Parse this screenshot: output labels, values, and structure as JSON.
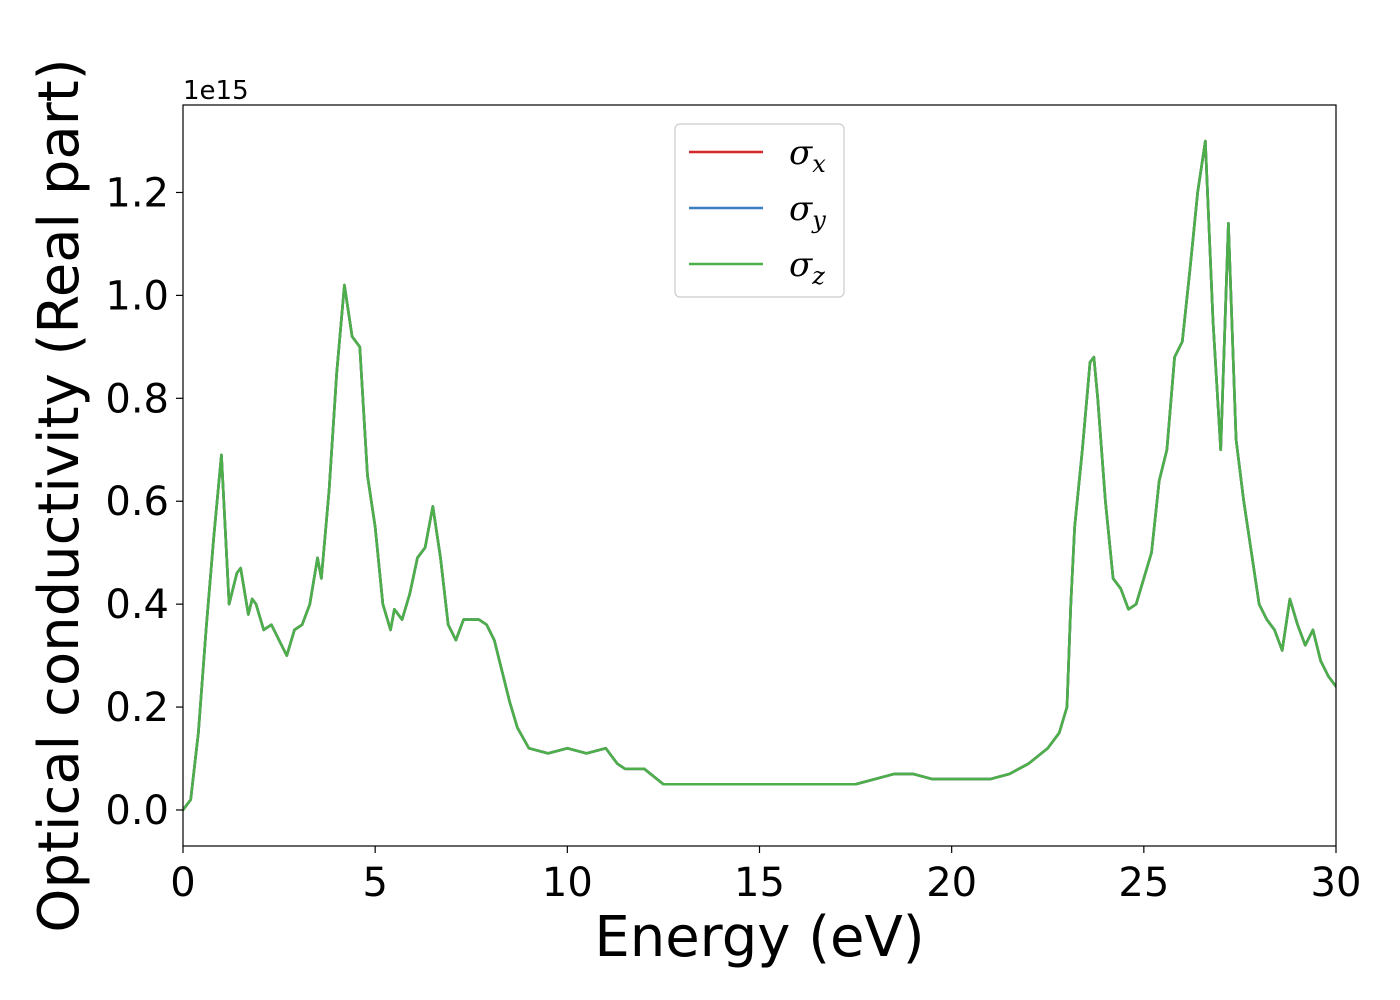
{
  "chart_data": {
    "type": "line",
    "xlabel": "Energy (eV)",
    "ylabel": "Optical conductivity (Real part)",
    "y_offset_label": "1e15",
    "xlim": [
      0,
      30
    ],
    "ylim": [
      -0.07,
      1.37
    ],
    "x_ticks": [
      0,
      5,
      10,
      15,
      20,
      25,
      30
    ],
    "y_ticks": [
      0.0,
      0.2,
      0.4,
      0.6,
      0.8,
      1.0,
      1.2
    ],
    "x_tick_labels": [
      "0",
      "5",
      "10",
      "15",
      "20",
      "25",
      "30"
    ],
    "y_tick_labels": [
      "0.0",
      "0.2",
      "0.4",
      "0.6",
      "0.8",
      "1.0",
      "1.2"
    ],
    "grid": false,
    "legend_position": "top-center",
    "legend": [
      {
        "symbol": "σ",
        "sub": "x",
        "color": "#d62728"
      },
      {
        "symbol": "σ",
        "sub": "y",
        "color": "#3a7fc1"
      },
      {
        "symbol": "σ",
        "sub": "z",
        "color": "#4daf4a"
      }
    ],
    "x": [
      0,
      0.2,
      0.4,
      0.6,
      0.8,
      1.0,
      1.2,
      1.4,
      1.5,
      1.7,
      1.8,
      1.9,
      2.1,
      2.3,
      2.5,
      2.7,
      2.9,
      3.1,
      3.3,
      3.5,
      3.6,
      3.8,
      4.0,
      4.2,
      4.4,
      4.6,
      4.8,
      5.0,
      5.2,
      5.4,
      5.5,
      5.7,
      5.9,
      6.1,
      6.3,
      6.5,
      6.7,
      6.9,
      7.1,
      7.3,
      7.5,
      7.7,
      7.9,
      8.1,
      8.3,
      8.5,
      8.7,
      9.0,
      9.5,
      10.0,
      10.5,
      11.0,
      11.3,
      11.5,
      12.0,
      12.5,
      13.0,
      13.5,
      14.0,
      14.5,
      15.0,
      15.5,
      16.0,
      16.5,
      17.0,
      17.5,
      18.0,
      18.5,
      19.0,
      19.5,
      20.0,
      20.5,
      21.0,
      21.5,
      22.0,
      22.5,
      22.8,
      23.0,
      23.1,
      23.2,
      23.4,
      23.6,
      23.7,
      23.8,
      24.0,
      24.2,
      24.4,
      24.6,
      24.8,
      25.0,
      25.2,
      25.4,
      25.6,
      25.8,
      26.0,
      26.2,
      26.4,
      26.6,
      26.8,
      27.0,
      27.2,
      27.4,
      27.6,
      27.8,
      28.0,
      28.2,
      28.4,
      28.6,
      28.8,
      29.0,
      29.2,
      29.4,
      29.6,
      29.8,
      30.0
    ],
    "series": [
      {
        "values": [
          0.0,
          0.02,
          0.15,
          0.35,
          0.53,
          0.69,
          0.4,
          0.46,
          0.47,
          0.38,
          0.41,
          0.4,
          0.35,
          0.36,
          0.33,
          0.3,
          0.35,
          0.36,
          0.4,
          0.49,
          0.45,
          0.62,
          0.85,
          1.02,
          0.92,
          0.9,
          0.65,
          0.55,
          0.4,
          0.35,
          0.39,
          0.37,
          0.42,
          0.49,
          0.51,
          0.59,
          0.49,
          0.36,
          0.33,
          0.37,
          0.37,
          0.37,
          0.36,
          0.33,
          0.27,
          0.21,
          0.16,
          0.12,
          0.11,
          0.12,
          0.11,
          0.12,
          0.09,
          0.08,
          0.08,
          0.05,
          0.05,
          0.05,
          0.05,
          0.05,
          0.05,
          0.05,
          0.05,
          0.05,
          0.05,
          0.05,
          0.06,
          0.07,
          0.07,
          0.06,
          0.06,
          0.06,
          0.06,
          0.07,
          0.09,
          0.12,
          0.15,
          0.2,
          0.4,
          0.55,
          0.7,
          0.87,
          0.88,
          0.8,
          0.6,
          0.45,
          0.43,
          0.39,
          0.4,
          0.45,
          0.5,
          0.64,
          0.7,
          0.88,
          0.91,
          1.05,
          1.2,
          1.3,
          0.95,
          0.7,
          1.14,
          0.72,
          0.6,
          0.5,
          0.4,
          0.37,
          0.35,
          0.31,
          0.41,
          0.36,
          0.32,
          0.35,
          0.29,
          0.26,
          0.24
        ]
      }
    ]
  }
}
